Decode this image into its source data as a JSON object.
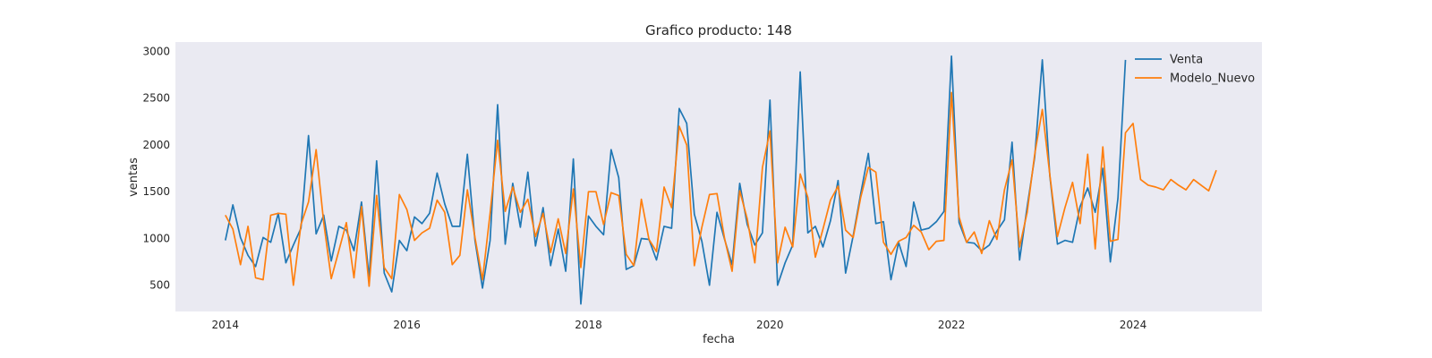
{
  "chart_data": {
    "type": "line",
    "title": "Grafico producto: 148",
    "xlabel": "fecha",
    "ylabel": "ventas",
    "xlim": [
      2013.45,
      2025.42
    ],
    "ylim": [
      220,
      3100
    ],
    "xticks": [
      2014,
      2016,
      2018,
      2020,
      2022,
      2024
    ],
    "xtick_labels": [
      "2014",
      "2016",
      "2018",
      "2020",
      "2022",
      "2024"
    ],
    "yticks": [
      500,
      1000,
      1500,
      2000,
      2500,
      3000
    ],
    "ytick_labels": [
      "500",
      "1000",
      "1500",
      "2000",
      "2500",
      "3000"
    ],
    "grid": false,
    "background": "#eaeaf2",
    "legend_position": "top-right",
    "series": [
      {
        "name": "Venta",
        "color": "#1f77b4",
        "x_start": "2014-01",
        "values": [
          980,
          1360,
          1010,
          820,
          700,
          1010,
          960,
          1270,
          740,
          930,
          1110,
          2100,
          1050,
          1250,
          760,
          1130,
          1090,
          870,
          1390,
          580,
          1830,
          630,
          430,
          980,
          870,
          1230,
          1160,
          1270,
          1700,
          1370,
          1130,
          1130,
          1900,
          980,
          470,
          980,
          2430,
          940,
          1590,
          1120,
          1710,
          920,
          1330,
          710,
          1100,
          650,
          1850,
          300,
          1240,
          1130,
          1040,
          1950,
          1650,
          670,
          710,
          1000,
          990,
          770,
          1130,
          1110,
          2390,
          2230,
          1260,
          970,
          500,
          1280,
          990,
          720,
          1590,
          1150,
          930,
          1060,
          2480,
          500,
          740,
          930,
          2780,
          1060,
          1130,
          910,
          1190,
          1620,
          630,
          1030,
          1480,
          1910,
          1160,
          1180,
          560,
          960,
          700,
          1390,
          1090,
          1110,
          1180,
          1290,
          2950,
          1170,
          960,
          950,
          870,
          930,
          1080,
          1200,
          2030,
          770,
          1340,
          1870,
          2910,
          1670,
          940,
          980,
          960,
          1340,
          1540,
          1280,
          1750,
          750,
          1430,
          2910
        ],
        "total": 120
      },
      {
        "name": "Modelo_Nuevo",
        "color": "#ff7f0e",
        "x_start": "2014-01",
        "values": [
          1250,
          1100,
          720,
          1130,
          580,
          560,
          1250,
          1270,
          1260,
          500,
          1150,
          1390,
          1950,
          1170,
          570,
          870,
          1170,
          580,
          1340,
          490,
          1460,
          690,
          570,
          1470,
          1310,
          980,
          1060,
          1110,
          1410,
          1280,
          720,
          820,
          1520,
          1010,
          560,
          1270,
          2050,
          1290,
          1550,
          1280,
          1420,
          1020,
          1270,
          850,
          1210,
          840,
          1530,
          690,
          1500,
          1500,
          1150,
          1490,
          1460,
          830,
          710,
          1420,
          990,
          860,
          1550,
          1330,
          2200,
          2000,
          710,
          1120,
          1470,
          1480,
          1000,
          650,
          1510,
          1210,
          740,
          1760,
          2150,
          740,
          1120,
          910,
          1690,
          1440,
          800,
          1100,
          1410,
          1560,
          1090,
          1010,
          1440,
          1760,
          1710,
          960,
          830,
          970,
          1010,
          1140,
          1070,
          880,
          970,
          980,
          2560,
          1230,
          960,
          1070,
          840,
          1190,
          990,
          1520,
          1840,
          910,
          1280,
          1900,
          2380,
          1680,
          1020,
          1330,
          1600,
          1160,
          1900,
          890,
          1980,
          970,
          990,
          2130,
          2230,
          1630,
          1570,
          1550,
          1520,
          1630,
          1570,
          1520,
          1630,
          1570,
          1510,
          1730
        ],
        "total": 132
      }
    ]
  }
}
